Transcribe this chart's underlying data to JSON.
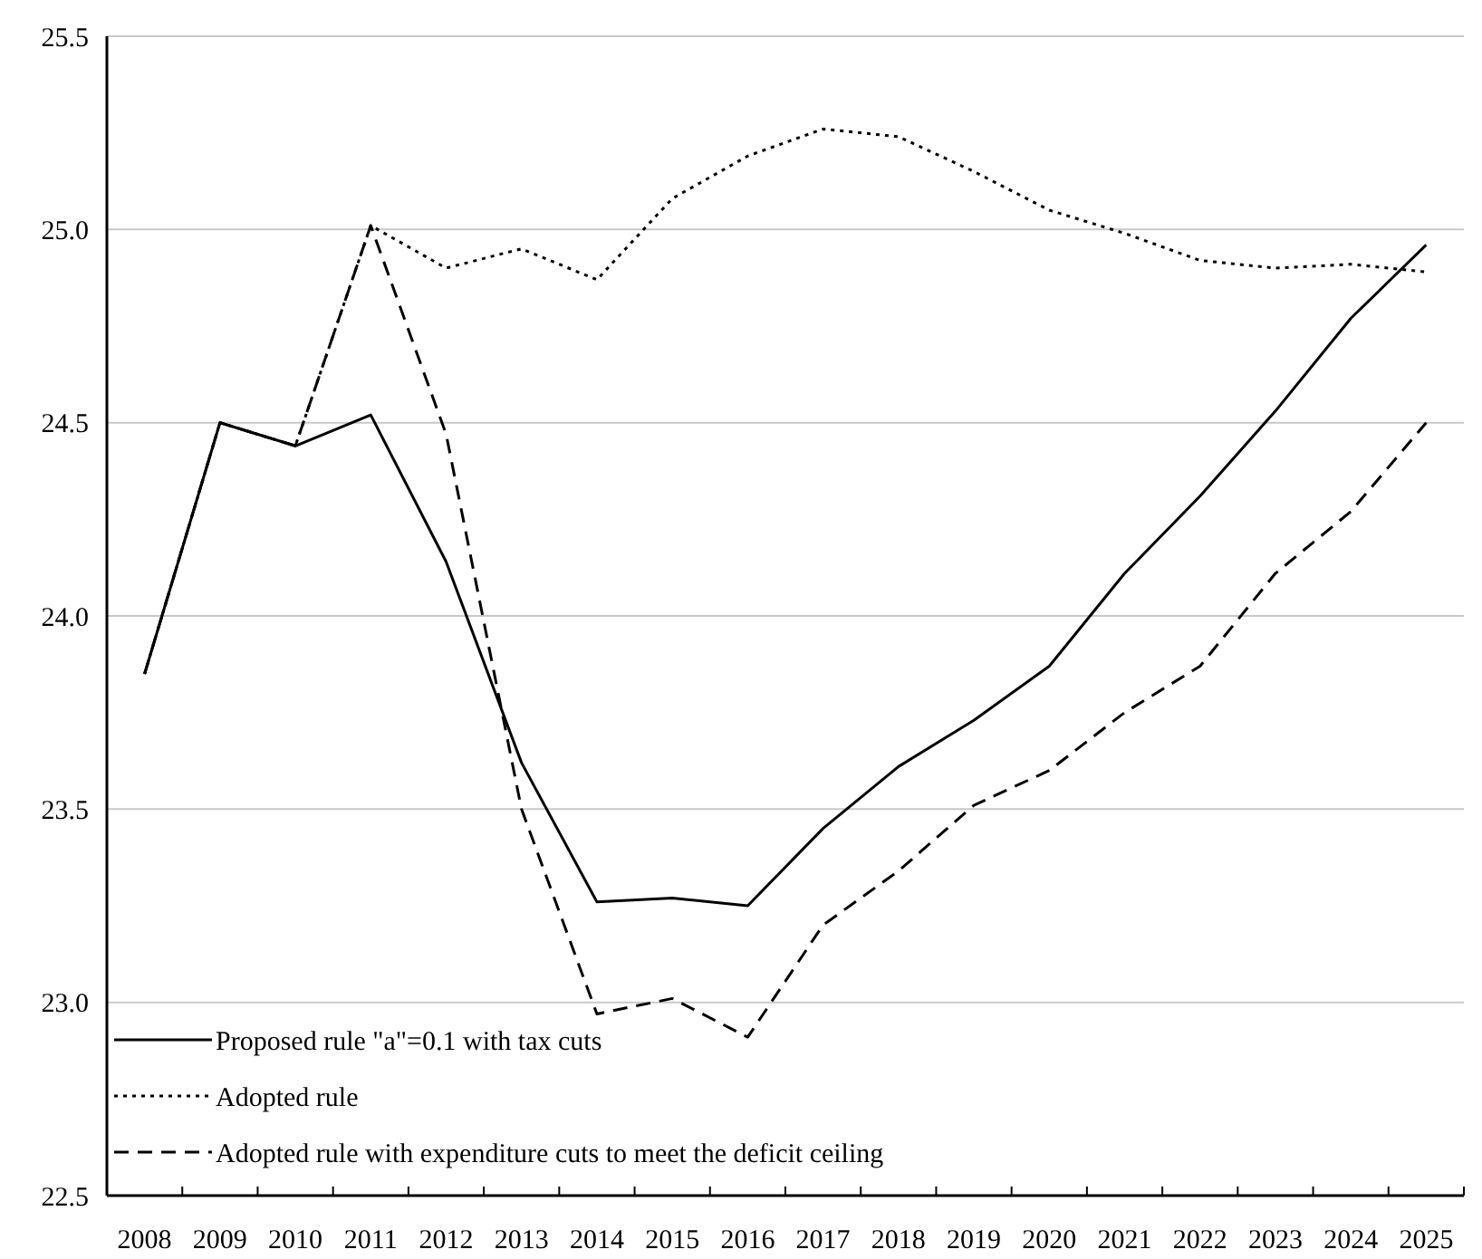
{
  "chart_data": {
    "type": "line",
    "categories": [
      "2008",
      "2009",
      "2010",
      "2011",
      "2012",
      "2013",
      "2014",
      "2015",
      "2016",
      "2017",
      "2018",
      "2019",
      "2020",
      "2021",
      "2022",
      "2023",
      "2024",
      "2025"
    ],
    "series": [
      {
        "name": "Proposed rule \"a\"=0.1 with tax cuts",
        "color": "#000000",
        "line_style": "solid",
        "values": [
          23.85,
          24.5,
          24.44,
          24.52,
          24.14,
          23.62,
          23.26,
          23.27,
          23.25,
          23.45,
          23.61,
          23.73,
          23.87,
          24.11,
          24.31,
          24.53,
          24.77,
          24.96
        ]
      },
      {
        "name": "Adopted rule",
        "color": "#000000",
        "line_style": "dotted",
        "values": [
          23.85,
          24.5,
          24.44,
          25.01,
          24.9,
          24.95,
          24.87,
          25.08,
          25.19,
          25.26,
          25.24,
          25.15,
          25.05,
          24.99,
          24.92,
          24.9,
          24.91,
          24.89
        ]
      },
      {
        "name": "Adopted rule with expenditure cuts to meet the deficit ceiling",
        "color": "#000000",
        "line_style": "dashed",
        "values": [
          23.85,
          24.5,
          24.44,
          25.01,
          24.47,
          23.5,
          22.97,
          23.01,
          22.91,
          23.2,
          23.34,
          23.51,
          23.6,
          23.75,
          23.87,
          24.11,
          24.27,
          24.5
        ]
      }
    ],
    "ylim": [
      22.5,
      25.5
    ],
    "yticks": [
      22.5,
      {
        "value": 23,
        "label": "23.0"
      },
      23.5,
      {
        "value": 24,
        "label": "24.0"
      },
      24.5,
      {
        "value": 25,
        "label": "25.0"
      },
      25.5
    ],
    "grid": "y",
    "legend": "bottom left",
    "marker": "none"
  }
}
